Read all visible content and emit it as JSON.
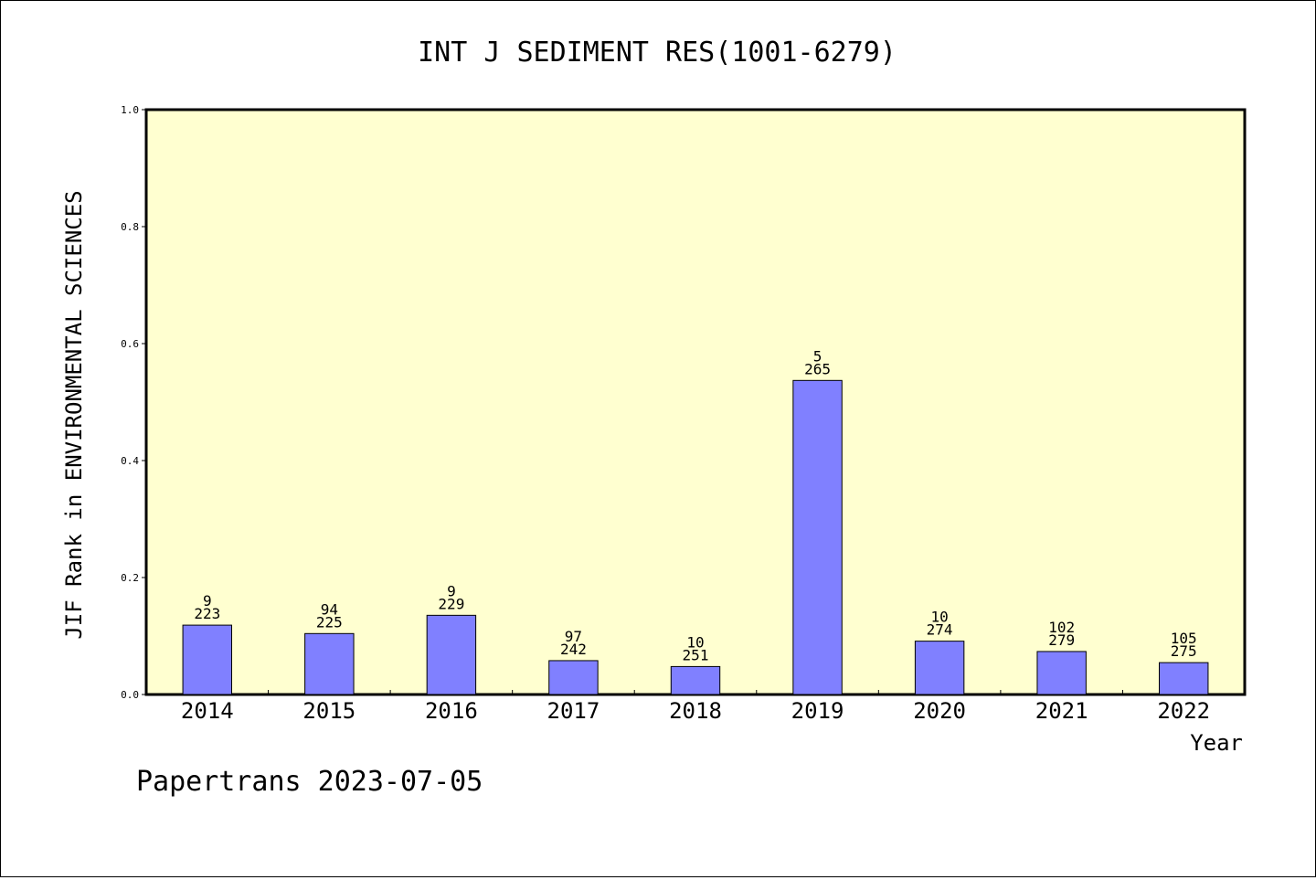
{
  "chart_data": {
    "type": "bar",
    "title": "INT J SEDIMENT RES(1001-6279)",
    "xlabel": "Year",
    "ylabel": "JIF Rank in ENVIRONMENTAL SCIENCES",
    "ylim": [
      0,
      1.0
    ],
    "yticks": [
      "0.0",
      "0.2",
      "0.4",
      "0.6",
      "0.8",
      "1.0"
    ],
    "categories": [
      "2014",
      "2015",
      "2016",
      "2017",
      "2018",
      "2019",
      "2020",
      "2021",
      "2022"
    ],
    "values": [
      0.1186,
      0.1042,
      0.1354,
      0.0579,
      0.0478,
      0.537,
      0.0912,
      0.0735,
      0.0545
    ],
    "labels": [
      {
        "rank": "9",
        "total": "223"
      },
      {
        "rank": "94",
        "total": "225"
      },
      {
        "rank": "9",
        "total": "229"
      },
      {
        "rank": "97",
        "total": "242"
      },
      {
        "rank": "10",
        "total": "251"
      },
      {
        "rank": "5",
        "total": "265"
      },
      {
        "rank": "10",
        "total": "274"
      },
      {
        "rank": "102",
        "total": "279"
      },
      {
        "rank": "105",
        "total": "275"
      }
    ],
    "grid": false,
    "colors": {
      "plot_background": "#ffffd0",
      "bar_fill": "#8080ff",
      "bar_stroke": "#000000"
    }
  },
  "footer": "Papertrans 2023-07-05"
}
